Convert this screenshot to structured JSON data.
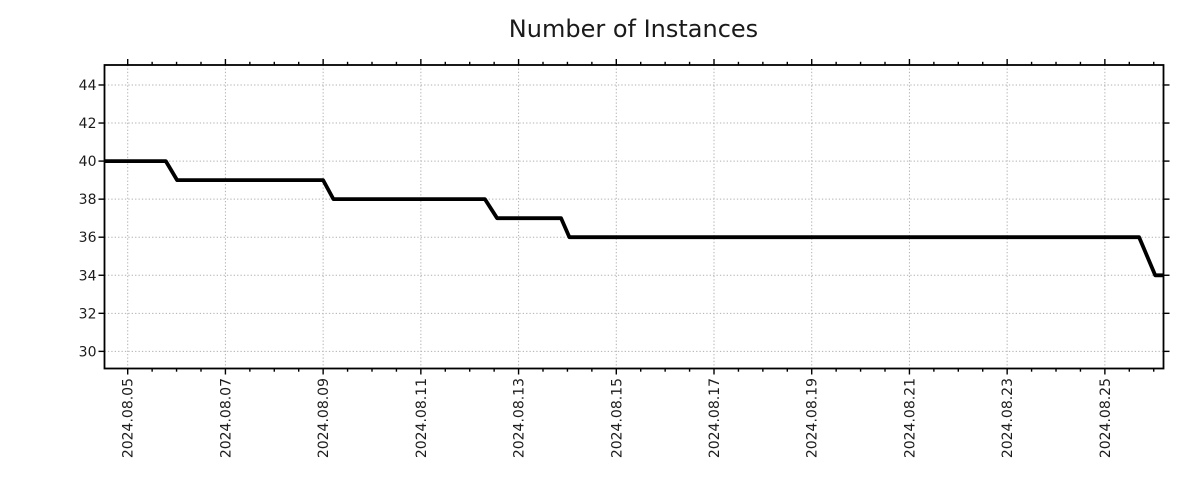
{
  "chart": {
    "title": "Number of Instances",
    "colors": {
      "line": "#000000",
      "grid": "#b0b0b0",
      "spine": "#000000",
      "text": "#1c1c1c",
      "background": "#ffffff"
    }
  },
  "chart_data": {
    "type": "line",
    "subtype": "step-like time series",
    "title": "Number of Instances",
    "xlabel": "",
    "ylabel": "",
    "legend": "none",
    "grid": {
      "style": "dotted",
      "major_x": true,
      "major_y": true
    },
    "x_axis": {
      "kind": "time",
      "xlim_days": [
        -0.475,
        21.2
      ],
      "xlim_labels": [
        "2024-08-04 ~12:40",
        "2024-08-26 ~04:50"
      ],
      "minor_tick_step_days": 0.5,
      "major_ticks": [
        {
          "day": 0,
          "label": "2024.08.05"
        },
        {
          "day": 2,
          "label": "2024.08.07"
        },
        {
          "day": 4,
          "label": "2024.08.09"
        },
        {
          "day": 6,
          "label": "2024.08.11"
        },
        {
          "day": 8,
          "label": "2024.08.13"
        },
        {
          "day": 10,
          "label": "2024.08.15"
        },
        {
          "day": 12,
          "label": "2024.08.17"
        },
        {
          "day": 14,
          "label": "2024.08.19"
        },
        {
          "day": 16,
          "label": "2024.08.21"
        },
        {
          "day": 18,
          "label": "2024.08.23"
        },
        {
          "day": 20,
          "label": "2024.08.25"
        }
      ]
    },
    "y_axis": {
      "ticks": [
        30,
        32,
        34,
        36,
        38,
        40,
        42,
        44
      ],
      "ylim": [
        29.1,
        45.05
      ]
    },
    "series": [
      {
        "name": "Number of Instances",
        "color": "#000000",
        "points": [
          {
            "day": -0.475,
            "time": "2024-08-04 ~12:40",
            "value": 40
          },
          {
            "day": 0.78,
            "time": "2024-08-05 ~18:45",
            "value": 40
          },
          {
            "day": 1.01,
            "time": "2024-08-06 ~00:15",
            "value": 39
          },
          {
            "day": 4.0,
            "time": "2024-08-09 ~00:00",
            "value": 39
          },
          {
            "day": 4.21,
            "time": "2024-08-09 ~05:00",
            "value": 38
          },
          {
            "day": 7.31,
            "time": "2024-08-12 ~07:25",
            "value": 38
          },
          {
            "day": 7.56,
            "time": "2024-08-12 ~13:25",
            "value": 37
          },
          {
            "day": 8.87,
            "time": "2024-08-13 ~20:50",
            "value": 37
          },
          {
            "day": 9.04,
            "time": "2024-08-14 ~01:00",
            "value": 36
          },
          {
            "day": 20.7,
            "time": "2024-08-25 ~16:50",
            "value": 36
          },
          {
            "day": 21.03,
            "time": "2024-08-26 ~00:45",
            "value": 34
          },
          {
            "day": 21.2,
            "time": "2024-08-26 ~04:50",
            "value": 34
          }
        ]
      }
    ]
  }
}
